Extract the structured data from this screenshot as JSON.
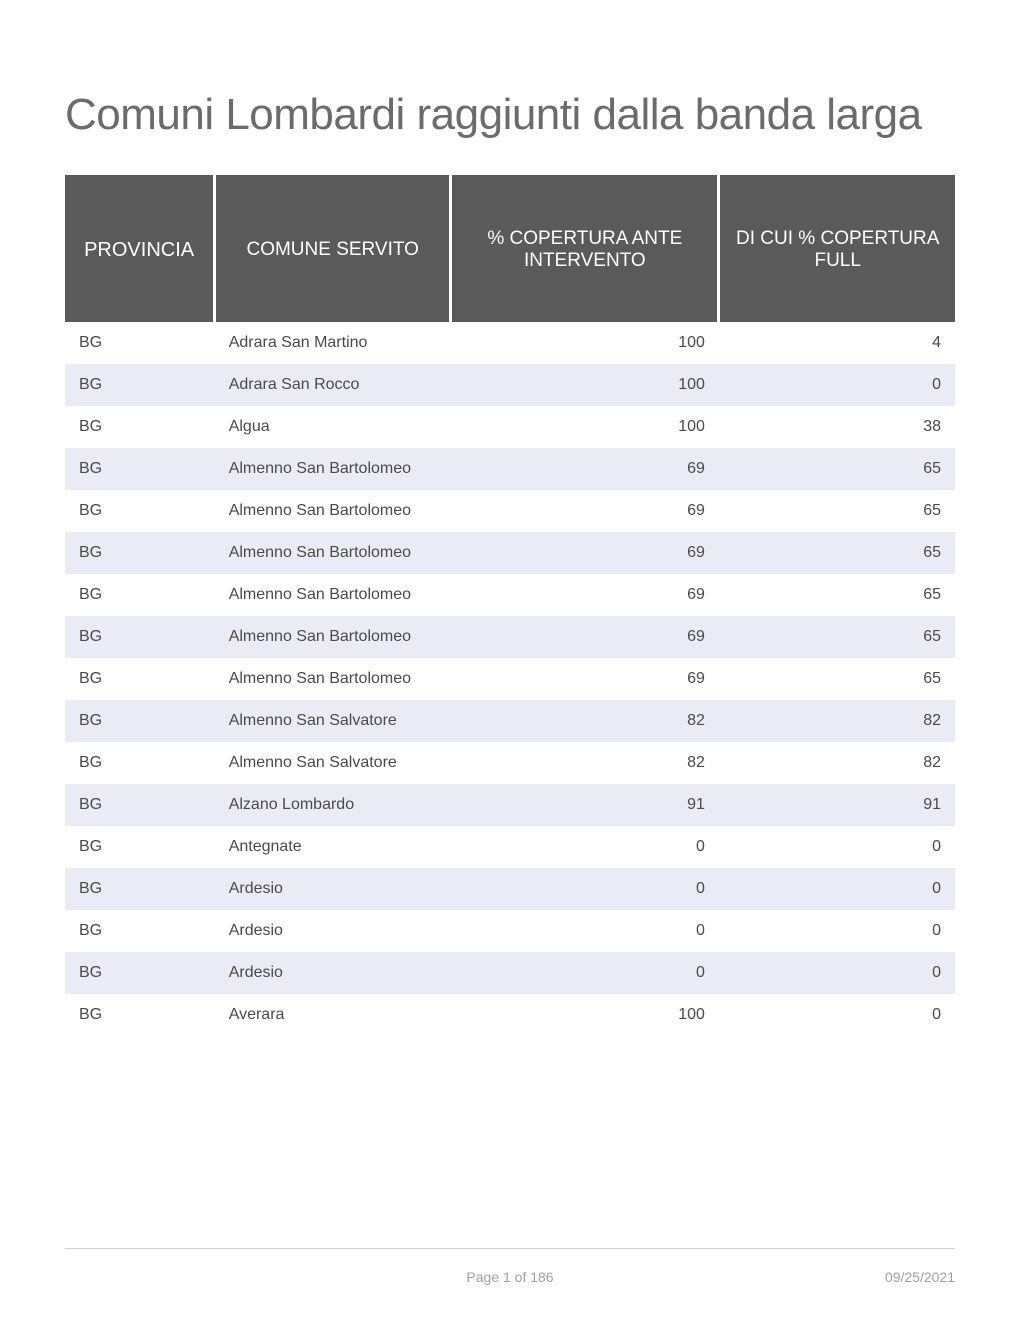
{
  "title": "Comuni Lombardi raggiunti dalla banda larga",
  "columns": {
    "prov": "PROVINCIA",
    "comune": "COMUNE SERVITO",
    "ante": "% COPERTURA ANTE INTERVENTO",
    "full": "DI CUI % COPERTURA FULL"
  },
  "rows": [
    {
      "prov": "BG",
      "comune": "Adrara San Martino",
      "ante": "100",
      "full": "4"
    },
    {
      "prov": "BG",
      "comune": "Adrara San Rocco",
      "ante": "100",
      "full": "0"
    },
    {
      "prov": "BG",
      "comune": "Algua",
      "ante": "100",
      "full": "38"
    },
    {
      "prov": "BG",
      "comune": "Almenno San Bartolomeo",
      "ante": "69",
      "full": "65"
    },
    {
      "prov": "BG",
      "comune": "Almenno San Bartolomeo",
      "ante": "69",
      "full": "65"
    },
    {
      "prov": "BG",
      "comune": "Almenno San Bartolomeo",
      "ante": "69",
      "full": "65"
    },
    {
      "prov": "BG",
      "comune": "Almenno San Bartolomeo",
      "ante": "69",
      "full": "65"
    },
    {
      "prov": "BG",
      "comune": "Almenno San Bartolomeo",
      "ante": "69",
      "full": "65"
    },
    {
      "prov": "BG",
      "comune": "Almenno San Bartolomeo",
      "ante": "69",
      "full": "65"
    },
    {
      "prov": "BG",
      "comune": "Almenno San Salvatore",
      "ante": "82",
      "full": "82"
    },
    {
      "prov": "BG",
      "comune": "Almenno San Salvatore",
      "ante": "82",
      "full": "82"
    },
    {
      "prov": "BG",
      "comune": "Alzano Lombardo",
      "ante": "91",
      "full": "91"
    },
    {
      "prov": "BG",
      "comune": "Antegnate",
      "ante": "0",
      "full": "0"
    },
    {
      "prov": "BG",
      "comune": "Ardesio",
      "ante": "0",
      "full": "0"
    },
    {
      "prov": "BG",
      "comune": "Ardesio",
      "ante": "0",
      "full": "0"
    },
    {
      "prov": "BG",
      "comune": "Ardesio",
      "ante": "0",
      "full": "0"
    },
    {
      "prov": "BG",
      "comune": "Averara",
      "ante": "100",
      "full": "0"
    }
  ],
  "footer": {
    "page": "Page 1 of 186",
    "date": "09/25/2021"
  },
  "colors": {
    "header_bg": "#5a5a5a",
    "header_text": "#ffffff",
    "row_alt_bg": "#ebebf5",
    "title_color": "#6b6b6b",
    "cell_text": "#4a4a4a",
    "footer_text": "#a0a0a0"
  }
}
